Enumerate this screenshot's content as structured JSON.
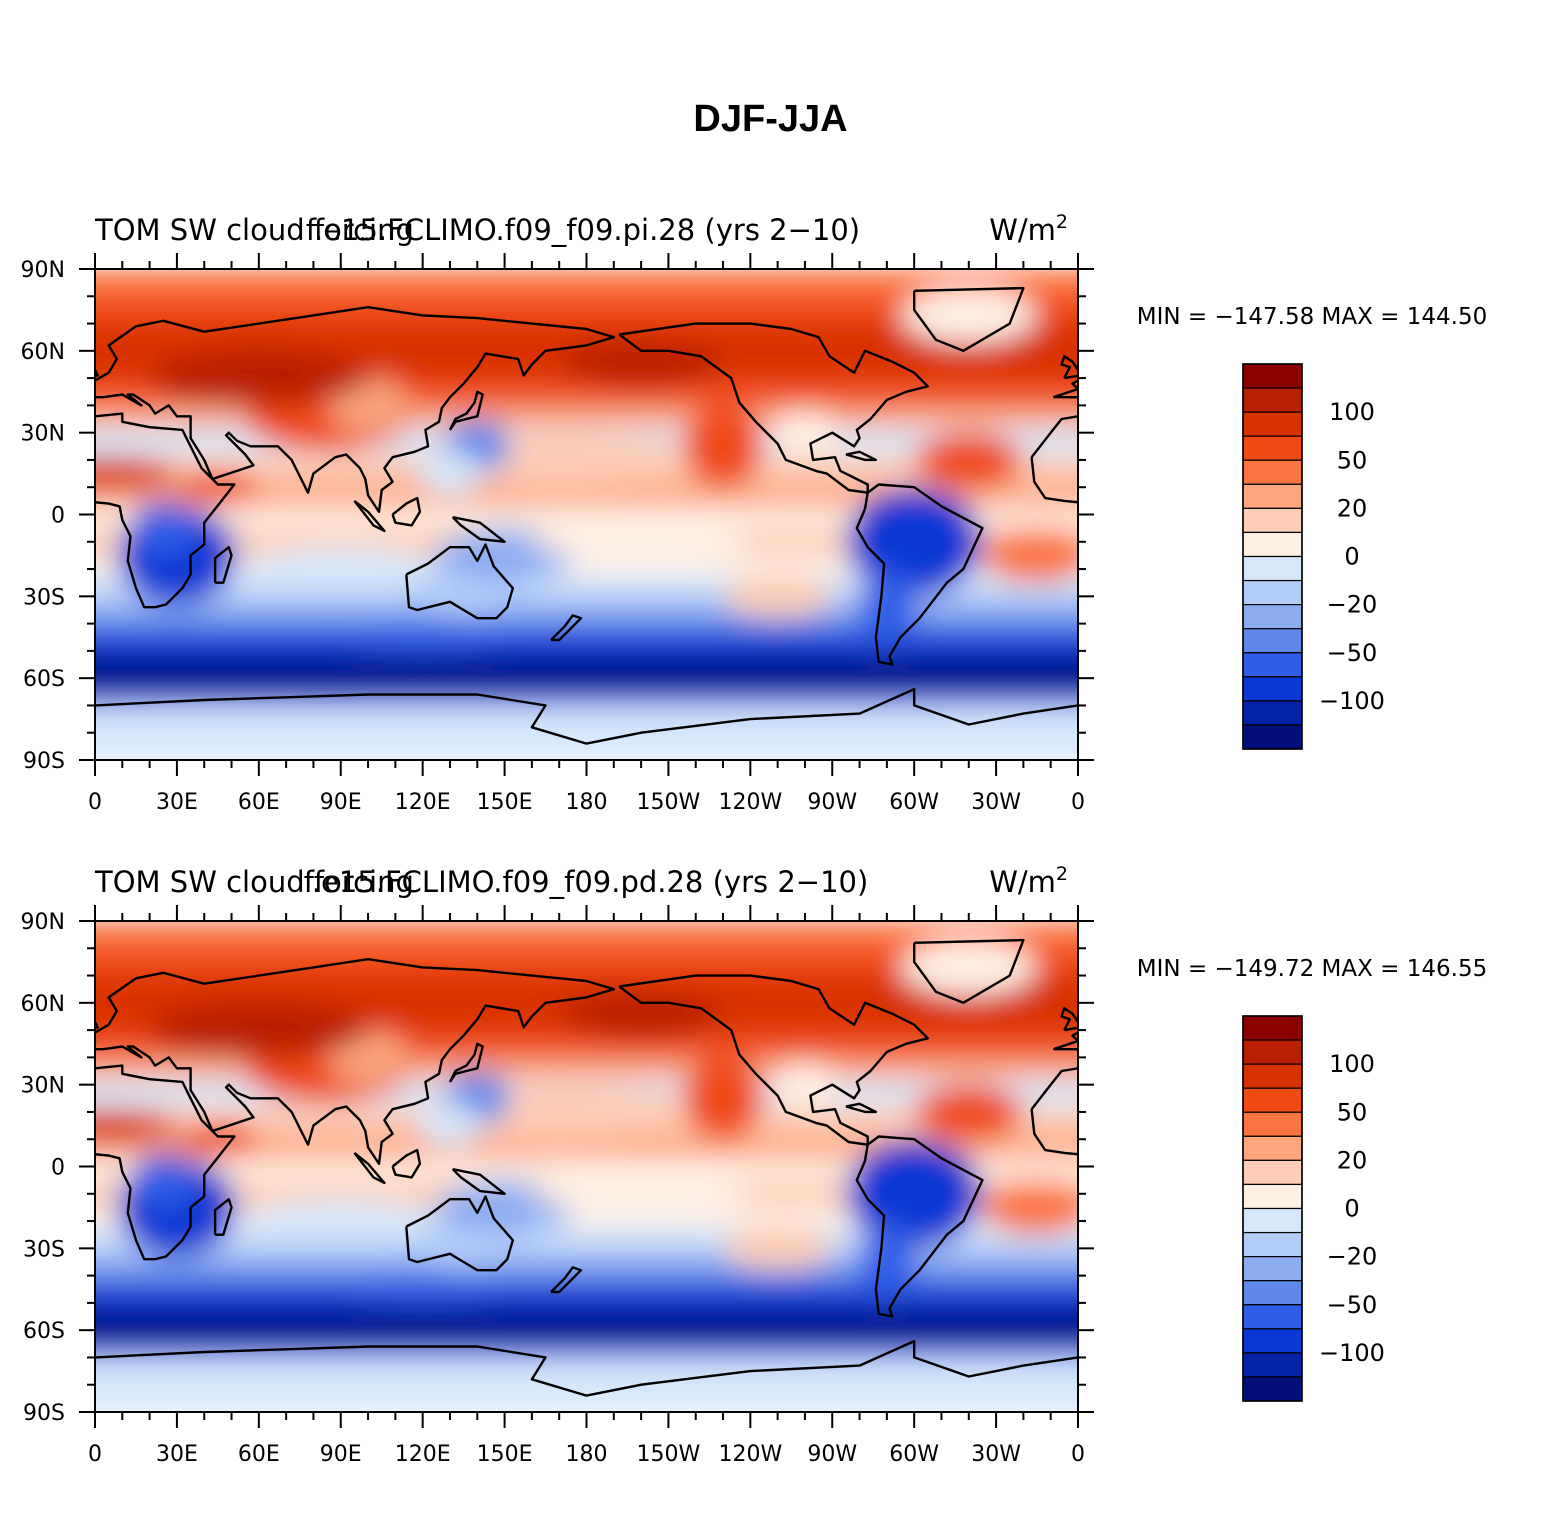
{
  "title": "DJF-JJA",
  "lon_ticks": [
    "0",
    "30E",
    "60E",
    "90E",
    "120E",
    "150E",
    "180",
    "150W",
    "120W",
    "90W",
    "60W",
    "30W",
    "0"
  ],
  "lat_ticks": [
    "90N",
    "60N",
    "30N",
    "0",
    "30S",
    "60S",
    "90S"
  ],
  "colorbar": {
    "labels": [
      "100",
      "50",
      "20",
      "0",
      "−20",
      "−50",
      "−100"
    ],
    "colors": [
      "#8b0000",
      "#b81e00",
      "#d83200",
      "#ef4a14",
      "#fb7340",
      "#fca57f",
      "#fdcdb5",
      "#fff0e4",
      "#d6e7fb",
      "#b4cdf7",
      "#8dadf1",
      "#5f88ea",
      "#2f5de6",
      "#0b37d4",
      "#0421a8",
      "#020f7a"
    ]
  },
  "panels": [
    {
      "left_string": "TOM SW cloud forcing",
      "center_string": "f.e15.FCLIMO.f09_f09.pi.28 (yrs 2−10)",
      "units_base": "W/m",
      "units_exp": "2",
      "stats": "MIN = −147.58 MAX = 144.50"
    },
    {
      "left_string": "TOM SW cloud forcing",
      "center_string": "f.e15.FCLIMO.f09_f09.pd.28 (yrs 2−10)",
      "units_base": "W/m",
      "units_exp": "2",
      "stats": "MIN = −149.72 MAX = 146.55"
    }
  ]
}
